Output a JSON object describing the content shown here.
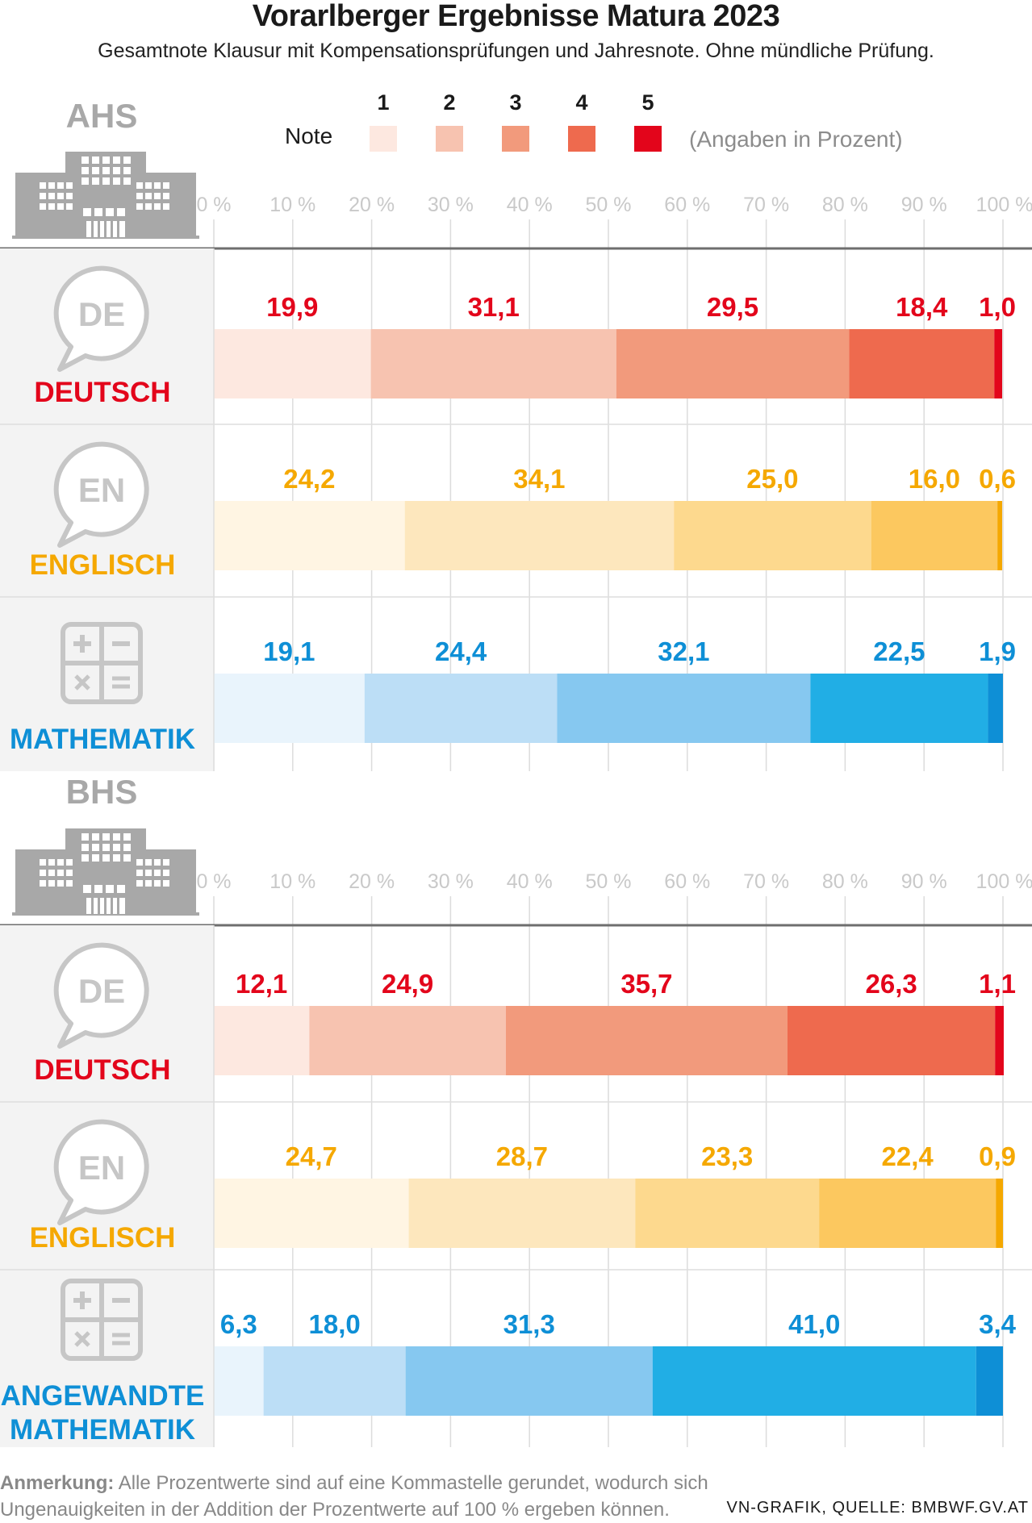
{
  "title": "Vorarlberger Ergebnisse Matura 2023",
  "subtitle": "Gesamtnote Klausur mit Kompensationsprüfungen und Jahresnote. Ohne mündliche Prüfung.",
  "legend": {
    "label": "Note",
    "grades": [
      "1",
      "2",
      "3",
      "4",
      "5"
    ],
    "unit_note": "(Angaben in Prozent)",
    "colors": [
      "#fde8e0",
      "#f7c3b0",
      "#f29a7c",
      "#ee6a4e",
      "#e3051b"
    ]
  },
  "axis_ticks": [
    "0 %",
    "10 %",
    "20 %",
    "30 %",
    "40 %",
    "50 %",
    "60 %",
    "70 %",
    "80 %",
    "90 %",
    "100 %"
  ],
  "palettes": {
    "red": {
      "text": "#e3051b",
      "segments": [
        "#fde8e0",
        "#f7c3b0",
        "#f29a7c",
        "#ee6a4e",
        "#e3051b"
      ]
    },
    "yellow": {
      "text": "#f5a800",
      "segments": [
        "#fff5e3",
        "#fde7bd",
        "#fdd98e",
        "#fcc85f",
        "#f5a800"
      ]
    },
    "blue": {
      "text": "#0e8fd6",
      "segments": [
        "#e9f4fc",
        "#bcdef6",
        "#86c8f0",
        "#21aee5",
        "#0e8fd6"
      ]
    }
  },
  "icon_labels": {
    "de": "DE",
    "en": "EN"
  },
  "chart_data": [
    {
      "type": "bar",
      "stacked": true,
      "orientation": "horizontal",
      "group": "AHS",
      "categories": [
        "DEUTSCH",
        "ENGLISCH",
        "MATHEMATIK"
      ],
      "icons": [
        "speech-bubble-de-icon",
        "speech-bubble-en-icon",
        "calculator-icon"
      ],
      "palettes": [
        "red",
        "yellow",
        "blue"
      ],
      "series": [
        {
          "name": "1",
          "values": [
            19.9,
            24.2,
            19.1
          ],
          "labels": [
            "19,9",
            "24,2",
            "19,1"
          ]
        },
        {
          "name": "2",
          "values": [
            31.1,
            34.1,
            24.4
          ],
          "labels": [
            "31,1",
            "34,1",
            "24,4"
          ]
        },
        {
          "name": "3",
          "values": [
            29.5,
            25.0,
            32.1
          ],
          "labels": [
            "29,5",
            "25,0",
            "32,1"
          ]
        },
        {
          "name": "4",
          "values": [
            18.4,
            16.0,
            22.5
          ],
          "labels": [
            "18,4",
            "16,0",
            "22,5"
          ]
        },
        {
          "name": "5",
          "values": [
            1.0,
            0.6,
            1.9
          ],
          "labels": [
            "1,0",
            "0,6",
            "1,9"
          ]
        }
      ],
      "xlim": [
        0,
        100
      ],
      "grid": true
    },
    {
      "type": "bar",
      "stacked": true,
      "orientation": "horizontal",
      "group": "BHS",
      "categories": [
        "DEUTSCH",
        "ENGLISCH",
        "ANGEWANDTE MATHEMATIK"
      ],
      "icons": [
        "speech-bubble-de-icon",
        "speech-bubble-en-icon",
        "calculator-icon"
      ],
      "palettes": [
        "red",
        "yellow",
        "blue"
      ],
      "series": [
        {
          "name": "1",
          "values": [
            12.1,
            24.7,
            6.3
          ],
          "labels": [
            "12,1",
            "24,7",
            "6,3"
          ]
        },
        {
          "name": "2",
          "values": [
            24.9,
            28.7,
            18.0
          ],
          "labels": [
            "24,9",
            "28,7",
            "18,0"
          ]
        },
        {
          "name": "3",
          "values": [
            35.7,
            23.3,
            31.3
          ],
          "labels": [
            "35,7",
            "23,3",
            "31,3"
          ]
        },
        {
          "name": "4",
          "values": [
            26.3,
            22.4,
            41.0
          ],
          "labels": [
            "26,3",
            "22,4",
            "41,0"
          ]
        },
        {
          "name": "5",
          "values": [
            1.1,
            0.9,
            3.4
          ],
          "labels": [
            "1,1",
            "0,9",
            "3,4"
          ]
        }
      ],
      "xlim": [
        0,
        100
      ],
      "grid": true
    }
  ],
  "footnote": {
    "label": "Anmerkung:",
    "text": "Alle Prozentwerte sind auf eine Kommastelle gerundet, wodurch sich Ungenauigkeiten in der Addition der Prozentwerte auf 100 % ergeben können."
  },
  "source": "VN-GRAFIK, QUELLE: BMBWF.GV.AT"
}
